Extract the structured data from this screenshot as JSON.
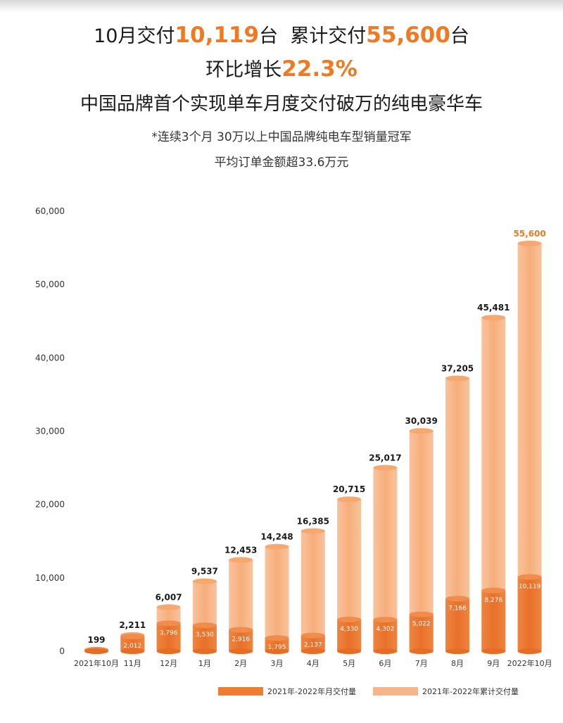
{
  "header": {
    "line1_a": "10月交付",
    "line1_b": "10,119",
    "line1_c": "台  累计交付",
    "line1_d": "55,600",
    "line1_e": "台",
    "line2_a": "环比增长",
    "line2_b": "22.3%",
    "line3": "中国品牌首个实现单车月度交付破万的纯电豪华车",
    "sub1": "*连续3个月 30万以上中国品牌纯电车型销量冠军",
    "sub2": "平均订单金额超33.6万元"
  },
  "colors": {
    "accent": "#f07a22",
    "monthly": "#ee7d32",
    "cumulative": "#f7b589"
  },
  "chart_data": {
    "type": "bar",
    "categories": [
      "2021年10月",
      "11月",
      "12月",
      "1月",
      "2月",
      "3月",
      "4月",
      "5月",
      "6月",
      "7月",
      "8月",
      "9月",
      "2022年10月"
    ],
    "series": [
      {
        "name": "2021年-2022年月交付量",
        "values": [
          199,
          2012,
          3796,
          3530,
          2916,
          1795,
          2137,
          4330,
          4302,
          5022,
          7166,
          8276,
          10119
        ],
        "labels": [
          "",
          "2,012",
          "3,796",
          "3,530",
          "2,916",
          "1,795",
          "2,137",
          "4,330",
          "4,302",
          "5,022",
          "7,166",
          "8,276",
          "10,119"
        ]
      },
      {
        "name": "2021年-2022年累计交付量",
        "values": [
          199,
          2211,
          6007,
          9537,
          12453,
          14248,
          16385,
          20715,
          25017,
          30039,
          37205,
          45481,
          55600
        ],
        "labels": [
          "199",
          "2,211",
          "6,007",
          "9,537",
          "12,453",
          "14,248",
          "16,385",
          "20,715",
          "25,017",
          "30,039",
          "37,205",
          "45,481",
          "55,600"
        ]
      }
    ],
    "yticks": [
      "0",
      "10,000",
      "20,000",
      "30,000",
      "40,000",
      "50,000",
      "60,000"
    ],
    "ylim": [
      0,
      60000
    ],
    "legend": "bottom"
  }
}
